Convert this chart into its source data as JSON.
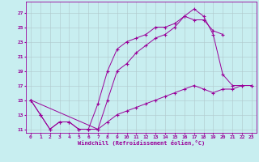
{
  "title": "",
  "xlabel": "Windchill (Refroidissement éolien,°C)",
  "bg_color": "#c8eef0",
  "line_color": "#990099",
  "grid_color": "#b0c8cc",
  "xlim": [
    -0.5,
    23.5
  ],
  "ylim": [
    10.5,
    28.5
  ],
  "yticks": [
    11,
    13,
    15,
    17,
    19,
    21,
    23,
    25,
    27
  ],
  "xticks": [
    0,
    1,
    2,
    3,
    4,
    5,
    6,
    7,
    8,
    9,
    10,
    11,
    12,
    13,
    14,
    15,
    16,
    17,
    18,
    19,
    20,
    21,
    22,
    23
  ],
  "line1_x": [
    0,
    1,
    2,
    3,
    4,
    5,
    6,
    7,
    8,
    9,
    10,
    11,
    12,
    13,
    14,
    15,
    16,
    17,
    18,
    19,
    20,
    21,
    22,
    23
  ],
  "line1_y": [
    15,
    13,
    11,
    12,
    12,
    11,
    11,
    11,
    15,
    19,
    20,
    21.5,
    22.5,
    23.5,
    24,
    25,
    26.5,
    27.5,
    26.5,
    24,
    18.5,
    17,
    17,
    17
  ],
  "line2_x": [
    0,
    1,
    2,
    3,
    4,
    5,
    6,
    7,
    8,
    9,
    10,
    11,
    12,
    13,
    14,
    15,
    16,
    17,
    18,
    19,
    20
  ],
  "line2_y": [
    15,
    13,
    11,
    12,
    12,
    11,
    11,
    14.5,
    19,
    22,
    23,
    23.5,
    24,
    25,
    25,
    25.5,
    26.5,
    26,
    26,
    24.5,
    24
  ],
  "line3_x": [
    0,
    7,
    8,
    9,
    10,
    11,
    12,
    13,
    14,
    15,
    16,
    17,
    18,
    19,
    20,
    21,
    22,
    23
  ],
  "line3_y": [
    15,
    11,
    12,
    13,
    13.5,
    14,
    14.5,
    15,
    15.5,
    16,
    16.5,
    17,
    16.5,
    16,
    16.5,
    16.5,
    17,
    17
  ]
}
